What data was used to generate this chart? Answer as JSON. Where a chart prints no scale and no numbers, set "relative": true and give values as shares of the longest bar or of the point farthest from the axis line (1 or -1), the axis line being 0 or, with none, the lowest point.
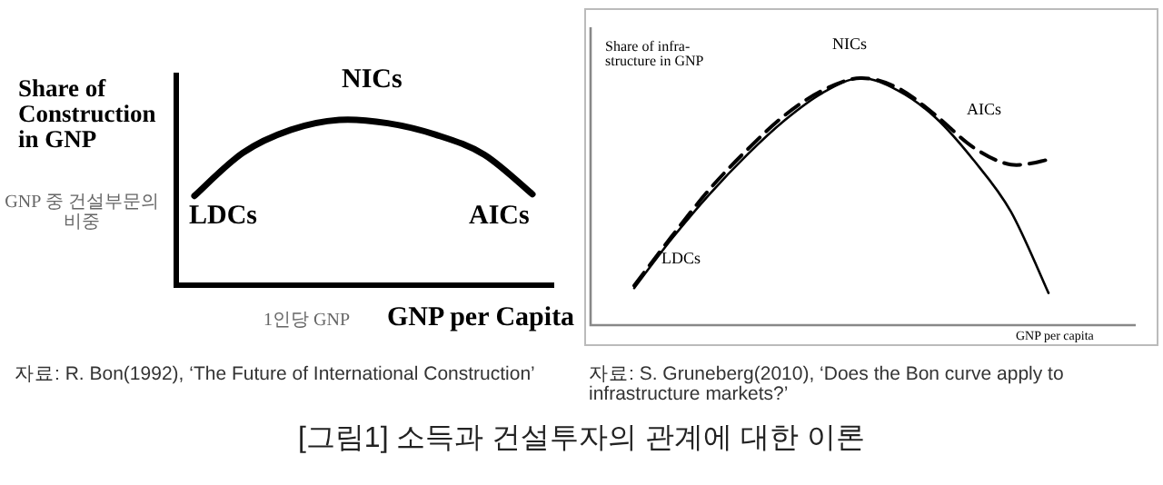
{
  "chart_data": [
    {
      "type": "line",
      "relative": true,
      "ylabel": "Share of Construction in GNP",
      "xlabel": "GNP per Capita",
      "categories": [
        null,
        null,
        null,
        null,
        null,
        null,
        null,
        null
      ],
      "series": [
        {
          "color": "#000000",
          "line_style": "solid",
          "values": [
            0.54,
            0.8,
            0.94,
            1.0,
            0.98,
            0.91,
            0.79,
            0.55
          ]
        }
      ],
      "annotations": [
        "LDCs",
        "NICs",
        "AICs",
        "GNP 중 건설부문의 비중",
        "1인당 GNP",
        "자료: R. Bon(1992), ‘The Future of International Construction’",
        "[그림1] 소득과 건설투자의 관계에 대한 이론"
      ]
    },
    {
      "type": "line",
      "relative": true,
      "ylabel": "Share of infra-structure in GNP",
      "xlabel": "GNP per capita",
      "categories": [
        null,
        null,
        null,
        null,
        null,
        null,
        null,
        null,
        null,
        null,
        null,
        null
      ],
      "series": [
        {
          "color": "#000000",
          "line_style": "solid",
          "values": [
            0.15,
            0.35,
            0.53,
            0.69,
            0.83,
            0.94,
            1.0,
            0.95,
            0.84,
            0.67,
            0.46,
            0.13
          ]
        },
        {
          "color": "#000000",
          "line_style": "dashed",
          "values": [
            0.16,
            0.36,
            0.55,
            0.71,
            0.85,
            0.95,
            1.0,
            0.96,
            0.85,
            0.72,
            0.65,
            0.67
          ]
        }
      ],
      "annotations": [
        "NICs",
        "AICs",
        "LDCs",
        "자료: S. Gruneberg(2010), ‘Does the Bon curve apply to infrastructure markets?’"
      ]
    }
  ]
}
